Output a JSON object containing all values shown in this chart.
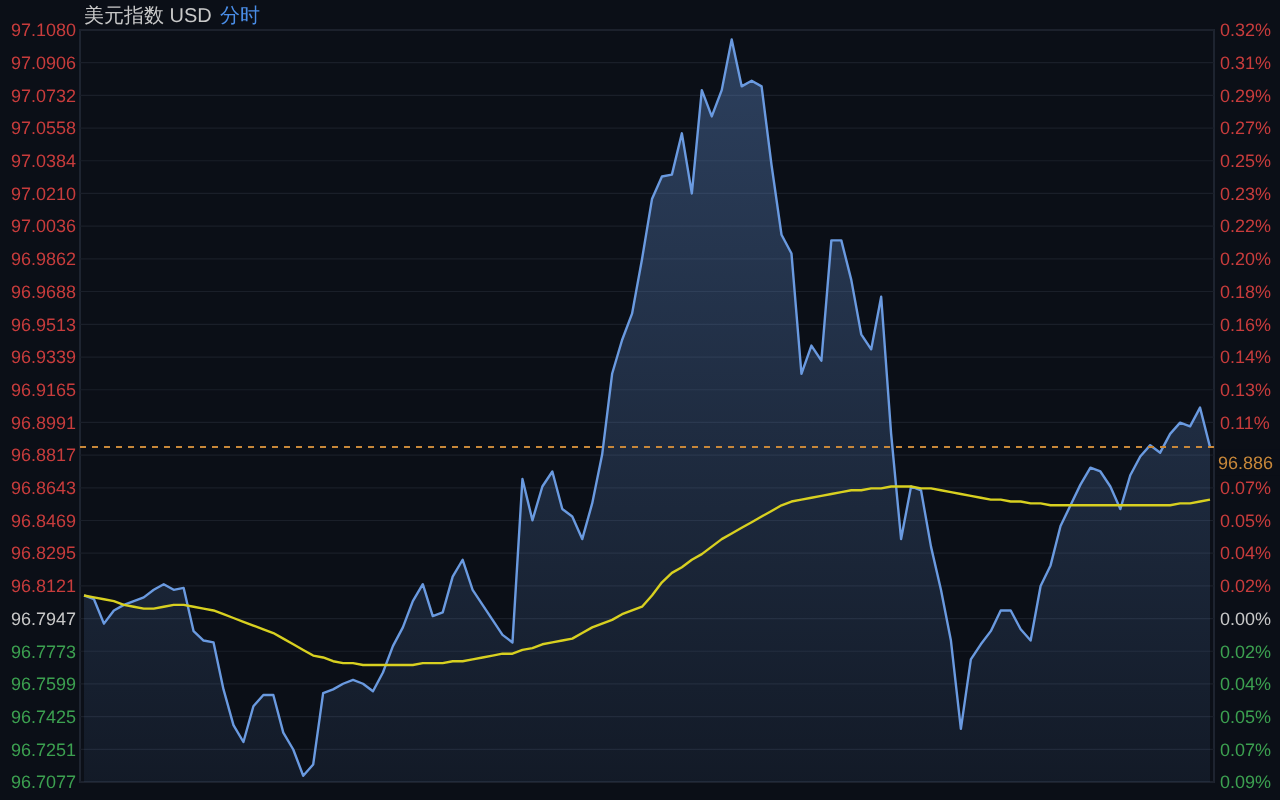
{
  "chart_data": {
    "type": "area",
    "title": "美元指数 USD",
    "subtitle": "分时",
    "categories": [
      null,
      null,
      null,
      null,
      null,
      null,
      null,
      null,
      null,
      null,
      null,
      null,
      null,
      null,
      null,
      null,
      null,
      null,
      null,
      null,
      null,
      null,
      null,
      null,
      null,
      null,
      null,
      null,
      null,
      null,
      null,
      null,
      null,
      null,
      null,
      null,
      null,
      null,
      null,
      null,
      null,
      null,
      null,
      null,
      null,
      null,
      null,
      null,
      null,
      null,
      null,
      null,
      null,
      null,
      null,
      null,
      null,
      null,
      null,
      null,
      null,
      null,
      null,
      null,
      null,
      null,
      null,
      null,
      null,
      null,
      null,
      null,
      null,
      null,
      null,
      null,
      null,
      null,
      null,
      null,
      null,
      null,
      null,
      null,
      null,
      null,
      null,
      null,
      null,
      null,
      null,
      null,
      null,
      null,
      null,
      null,
      null,
      null,
      null,
      null,
      null,
      null,
      null,
      null,
      null,
      null,
      null,
      null,
      null,
      null,
      null,
      null,
      null,
      null
    ],
    "series": [
      {
        "color": "#6a9ae0",
        "values": [
          96.807,
          96.805,
          96.792,
          96.799,
          96.802,
          96.804,
          96.806,
          96.81,
          96.813,
          96.81,
          96.811,
          96.788,
          96.783,
          96.782,
          96.757,
          96.738,
          96.729,
          96.748,
          96.754,
          96.754,
          96.734,
          96.725,
          96.711,
          96.717,
          96.755,
          96.757,
          96.76,
          96.762,
          96.76,
          96.756,
          96.766,
          96.78,
          96.79,
          96.804,
          96.813,
          96.796,
          96.798,
          96.817,
          96.826,
          96.81,
          96.802,
          96.794,
          96.786,
          96.782,
          96.869,
          96.847,
          96.865,
          96.873,
          96.853,
          96.849,
          96.837,
          96.856,
          96.882,
          96.925,
          96.943,
          96.957,
          96.986,
          97.018,
          97.03,
          97.031,
          97.053,
          97.021,
          97.076,
          97.062,
          97.076,
          97.103,
          97.078,
          97.081,
          97.078,
          97.036,
          96.999,
          96.989,
          96.925,
          96.94,
          96.932,
          96.996,
          96.996,
          96.975,
          96.946,
          96.938,
          96.966,
          96.893,
          96.837,
          96.865,
          96.863,
          96.833,
          96.81,
          96.783,
          96.736,
          96.773,
          96.781,
          96.788,
          96.799,
          96.799,
          96.789,
          96.783,
          96.812,
          96.823,
          96.844,
          96.855,
          96.866,
          96.875,
          96.873,
          96.865,
          96.853,
          96.871,
          96.881,
          96.887,
          96.883,
          96.893,
          96.899,
          96.897,
          96.907,
          96.886
        ]
      },
      {
        "type": "line",
        "color": "#d8d020",
        "values": [
          96.807,
          96.806,
          96.805,
          96.804,
          96.802,
          96.801,
          96.8,
          96.8,
          96.801,
          96.802,
          96.802,
          96.801,
          96.8,
          96.799,
          96.797,
          96.795,
          96.793,
          96.791,
          96.789,
          96.787,
          96.784,
          96.781,
          96.778,
          96.775,
          96.774,
          96.772,
          96.771,
          96.771,
          96.77,
          96.77,
          96.77,
          96.77,
          96.77,
          96.77,
          96.771,
          96.771,
          96.771,
          96.772,
          96.772,
          96.773,
          96.774,
          96.775,
          96.776,
          96.776,
          96.778,
          96.779,
          96.781,
          96.782,
          96.783,
          96.784,
          96.787,
          96.79,
          96.792,
          96.794,
          96.797,
          96.799,
          96.801,
          96.807,
          96.814,
          96.819,
          96.822,
          96.826,
          96.829,
          96.833,
          96.837,
          96.84,
          96.843,
          96.846,
          96.849,
          96.852,
          96.855,
          96.857,
          96.858,
          96.859,
          96.86,
          96.861,
          96.862,
          96.863,
          96.863,
          96.864,
          96.864,
          96.865,
          96.865,
          96.865,
          96.864,
          96.864,
          96.863,
          96.862,
          96.861,
          96.86,
          96.859,
          96.858,
          96.858,
          96.857,
          96.857,
          96.856,
          96.856,
          96.855,
          96.855,
          96.855,
          96.855,
          96.855,
          96.855,
          96.855,
          96.855,
          96.855,
          96.855,
          96.855,
          96.855,
          96.855,
          96.856,
          96.856,
          96.857,
          96.858
        ]
      }
    ],
    "ylim": [
      96.7077,
      97.108
    ],
    "yticks": [
      {
        "value": 97.108,
        "label": "97.1080"
      },
      97.0906,
      97.0732,
      97.0558,
      97.0384,
      {
        "value": 97.021,
        "label": "97.0210"
      },
      97.0036,
      96.9862,
      96.9688,
      96.9513,
      96.9339,
      96.9165,
      96.8991,
      96.8817,
      96.8643,
      96.8469,
      96.8295,
      96.8121,
      96.7947,
      96.7773,
      96.7599,
      96.7425,
      96.7251,
      96.7077
    ],
    "y2lim": [
      -0.0899,
      0.3237
    ],
    "y2ticks": [
      {
        "value": 0.3237,
        "label": "0.32%"
      },
      {
        "value": 0.3057,
        "label": "0.31%"
      },
      {
        "value": 0.2877,
        "label": "0.29%"
      },
      {
        "value": 0.2697,
        "label": "0.27%"
      },
      {
        "value": 0.2518,
        "label": "0.25%"
      },
      {
        "value": 0.2338,
        "label": "0.23%"
      },
      {
        "value": 0.2158,
        "label": "0.22%"
      },
      {
        "value": 0.1978,
        "label": "0.20%"
      },
      {
        "value": 0.1799,
        "label": "0.18%"
      },
      {
        "value": 0.1618,
        "label": "0.16%"
      },
      {
        "value": 0.1438,
        "label": "0.14%"
      },
      {
        "value": 0.1258,
        "label": "0.13%"
      },
      {
        "value": 0.1079,
        "label": "0.11%"
      },
      {
        "value": 0.0899,
        "label": null
      },
      {
        "value": 0.0719,
        "label": "0.07%"
      },
      {
        "value": 0.0539,
        "label": "0.05%"
      },
      {
        "value": 0.036,
        "label": "0.04%"
      },
      {
        "value": 0.018,
        "label": "0.02%"
      },
      {
        "value": 0,
        "label": "0.00%"
      },
      {
        "value": -0.018,
        "label": "0.02%"
      },
      {
        "value": -0.036,
        "label": "0.04%"
      },
      {
        "value": -0.0539,
        "label": "0.05%"
      },
      {
        "value": -0.0719,
        "label": "0.07%"
      },
      {
        "value": -0.0899,
        "label": "0.09%"
      }
    ],
    "ref_lines": [
      {
        "axis": "y",
        "value": 96.886,
        "label": "96.886",
        "color": "#c8883a",
        "line_style": "dashed"
      }
    ],
    "grid": "y"
  }
}
